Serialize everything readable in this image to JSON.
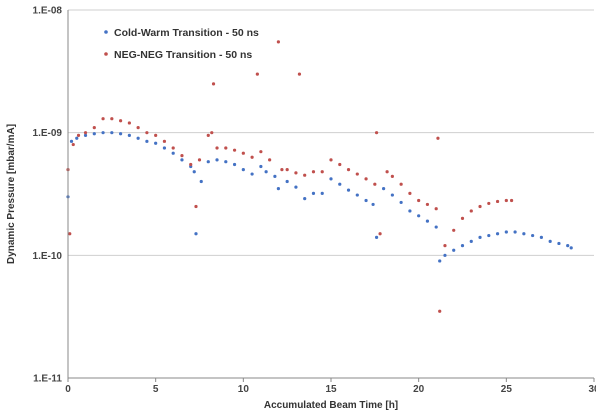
{
  "chart_data": {
    "type": "scatter",
    "title": "",
    "xlabel": "Accumulated Beam Time [h]",
    "ylabel": "Dynamic Pressure [mbar/mA]",
    "xlim": [
      0,
      30
    ],
    "ylim": [
      1e-11,
      1e-08
    ],
    "y_scale": "log",
    "x_ticks": [
      "0",
      "5",
      "10",
      "15",
      "20",
      "25",
      "30"
    ],
    "y_ticks": [
      "1.E-11",
      "1.E-10",
      "1.E-09",
      "1.E-08"
    ],
    "horizontal_grid": true,
    "vertical_grid": false,
    "legend_position": "top-left",
    "series": [
      {
        "name": "Cold-Warm Transition - 50 ns",
        "color": "#4472c4",
        "points": [
          [
            0.0,
            3e-10
          ],
          [
            0.2,
            8.5e-10
          ],
          [
            0.5,
            9e-10
          ],
          [
            1.0,
            9.5e-10
          ],
          [
            1.5,
            9.8e-10
          ],
          [
            2.0,
            1e-09
          ],
          [
            2.5,
            1e-09
          ],
          [
            3.0,
            9.8e-10
          ],
          [
            3.5,
            9.5e-10
          ],
          [
            4.0,
            9e-10
          ],
          [
            4.5,
            8.5e-10
          ],
          [
            5.0,
            8.2e-10
          ],
          [
            5.5,
            7.5e-10
          ],
          [
            6.0,
            6.8e-10
          ],
          [
            6.5,
            6e-10
          ],
          [
            7.0,
            5.3e-10
          ],
          [
            7.2,
            4.8e-10
          ],
          [
            7.3,
            1.5e-10
          ],
          [
            7.6,
            4e-10
          ],
          [
            8.0,
            5.8e-10
          ],
          [
            8.5,
            6e-10
          ],
          [
            9.0,
            5.8e-10
          ],
          [
            9.5,
            5.5e-10
          ],
          [
            10.0,
            5e-10
          ],
          [
            10.5,
            4.6e-10
          ],
          [
            11.0,
            5.3e-10
          ],
          [
            11.3,
            4.8e-10
          ],
          [
            11.8,
            4.4e-10
          ],
          [
            12.0,
            3.5e-10
          ],
          [
            12.5,
            4e-10
          ],
          [
            13.0,
            3.6e-10
          ],
          [
            13.5,
            2.9e-10
          ],
          [
            14.0,
            3.2e-10
          ],
          [
            14.5,
            3.2e-10
          ],
          [
            15.0,
            4.2e-10
          ],
          [
            15.5,
            3.8e-10
          ],
          [
            16.0,
            3.4e-10
          ],
          [
            16.5,
            3.1e-10
          ],
          [
            17.0,
            2.8e-10
          ],
          [
            17.4,
            2.6e-10
          ],
          [
            17.6,
            1.4e-10
          ],
          [
            18.0,
            3.5e-10
          ],
          [
            18.5,
            3.1e-10
          ],
          [
            19.0,
            2.7e-10
          ],
          [
            19.5,
            2.3e-10
          ],
          [
            20.0,
            2.1e-10
          ],
          [
            20.5,
            1.9e-10
          ],
          [
            21.0,
            1.7e-10
          ],
          [
            21.2,
            9e-11
          ],
          [
            21.5,
            1e-10
          ],
          [
            22.0,
            1.1e-10
          ],
          [
            22.5,
            1.2e-10
          ],
          [
            23.0,
            1.3e-10
          ],
          [
            23.5,
            1.4e-10
          ],
          [
            24.0,
            1.45e-10
          ],
          [
            24.5,
            1.5e-10
          ],
          [
            25.0,
            1.55e-10
          ],
          [
            25.5,
            1.55e-10
          ],
          [
            26.0,
            1.5e-10
          ],
          [
            26.5,
            1.45e-10
          ],
          [
            27.0,
            1.4e-10
          ],
          [
            27.5,
            1.3e-10
          ],
          [
            28.0,
            1.25e-10
          ],
          [
            28.5,
            1.2e-10
          ],
          [
            28.7,
            1.15e-10
          ]
        ]
      },
      {
        "name": "NEG-NEG Transition - 50 ns",
        "color": "#c0504d",
        "points": [
          [
            0.0,
            5e-10
          ],
          [
            0.1,
            1.5e-10
          ],
          [
            0.3,
            8e-10
          ],
          [
            0.6,
            9.5e-10
          ],
          [
            1.0,
            1e-09
          ],
          [
            1.5,
            1.1e-09
          ],
          [
            2.0,
            1.3e-09
          ],
          [
            2.5,
            1.3e-09
          ],
          [
            3.0,
            1.25e-09
          ],
          [
            3.5,
            1.2e-09
          ],
          [
            4.0,
            1.1e-09
          ],
          [
            4.5,
            1e-09
          ],
          [
            5.0,
            9.5e-10
          ],
          [
            5.5,
            8.5e-10
          ],
          [
            6.0,
            7.5e-10
          ],
          [
            6.5,
            6.5e-10
          ],
          [
            7.0,
            5.5e-10
          ],
          [
            7.3,
            2.5e-10
          ],
          [
            7.5,
            6e-10
          ],
          [
            8.0,
            9.5e-10
          ],
          [
            8.2,
            1e-09
          ],
          [
            8.3,
            2.5e-09
          ],
          [
            8.5,
            7.5e-10
          ],
          [
            9.0,
            7.5e-10
          ],
          [
            9.5,
            7.2e-10
          ],
          [
            10.0,
            6.8e-10
          ],
          [
            10.5,
            6.3e-10
          ],
          [
            10.8,
            3e-09
          ],
          [
            11.0,
            7e-10
          ],
          [
            11.5,
            6e-10
          ],
          [
            12.0,
            5.5e-09
          ],
          [
            12.2,
            5e-10
          ],
          [
            12.5,
            5e-10
          ],
          [
            13.0,
            4.7e-10
          ],
          [
            13.2,
            3e-09
          ],
          [
            13.5,
            4.5e-10
          ],
          [
            14.0,
            4.8e-10
          ],
          [
            14.5,
            4.8e-10
          ],
          [
            15.0,
            6e-10
          ],
          [
            15.5,
            5.5e-10
          ],
          [
            16.0,
            5e-10
          ],
          [
            16.5,
            4.6e-10
          ],
          [
            17.0,
            4.2e-10
          ],
          [
            17.5,
            3.8e-10
          ],
          [
            17.6,
            1e-09
          ],
          [
            17.8,
            1.5e-10
          ],
          [
            18.2,
            4.8e-10
          ],
          [
            18.5,
            4.4e-10
          ],
          [
            19.0,
            3.8e-10
          ],
          [
            19.5,
            3.2e-10
          ],
          [
            20.0,
            2.8e-10
          ],
          [
            20.5,
            2.6e-10
          ],
          [
            21.0,
            2.4e-10
          ],
          [
            21.1,
            9e-10
          ],
          [
            21.2,
            3.5e-11
          ],
          [
            21.5,
            1.2e-10
          ],
          [
            22.0,
            1.6e-10
          ],
          [
            22.5,
            2e-10
          ],
          [
            23.0,
            2.3e-10
          ],
          [
            23.5,
            2.5e-10
          ],
          [
            24.0,
            2.65e-10
          ],
          [
            24.5,
            2.75e-10
          ],
          [
            25.0,
            2.8e-10
          ],
          [
            25.3,
            2.8e-10
          ]
        ]
      }
    ]
  }
}
